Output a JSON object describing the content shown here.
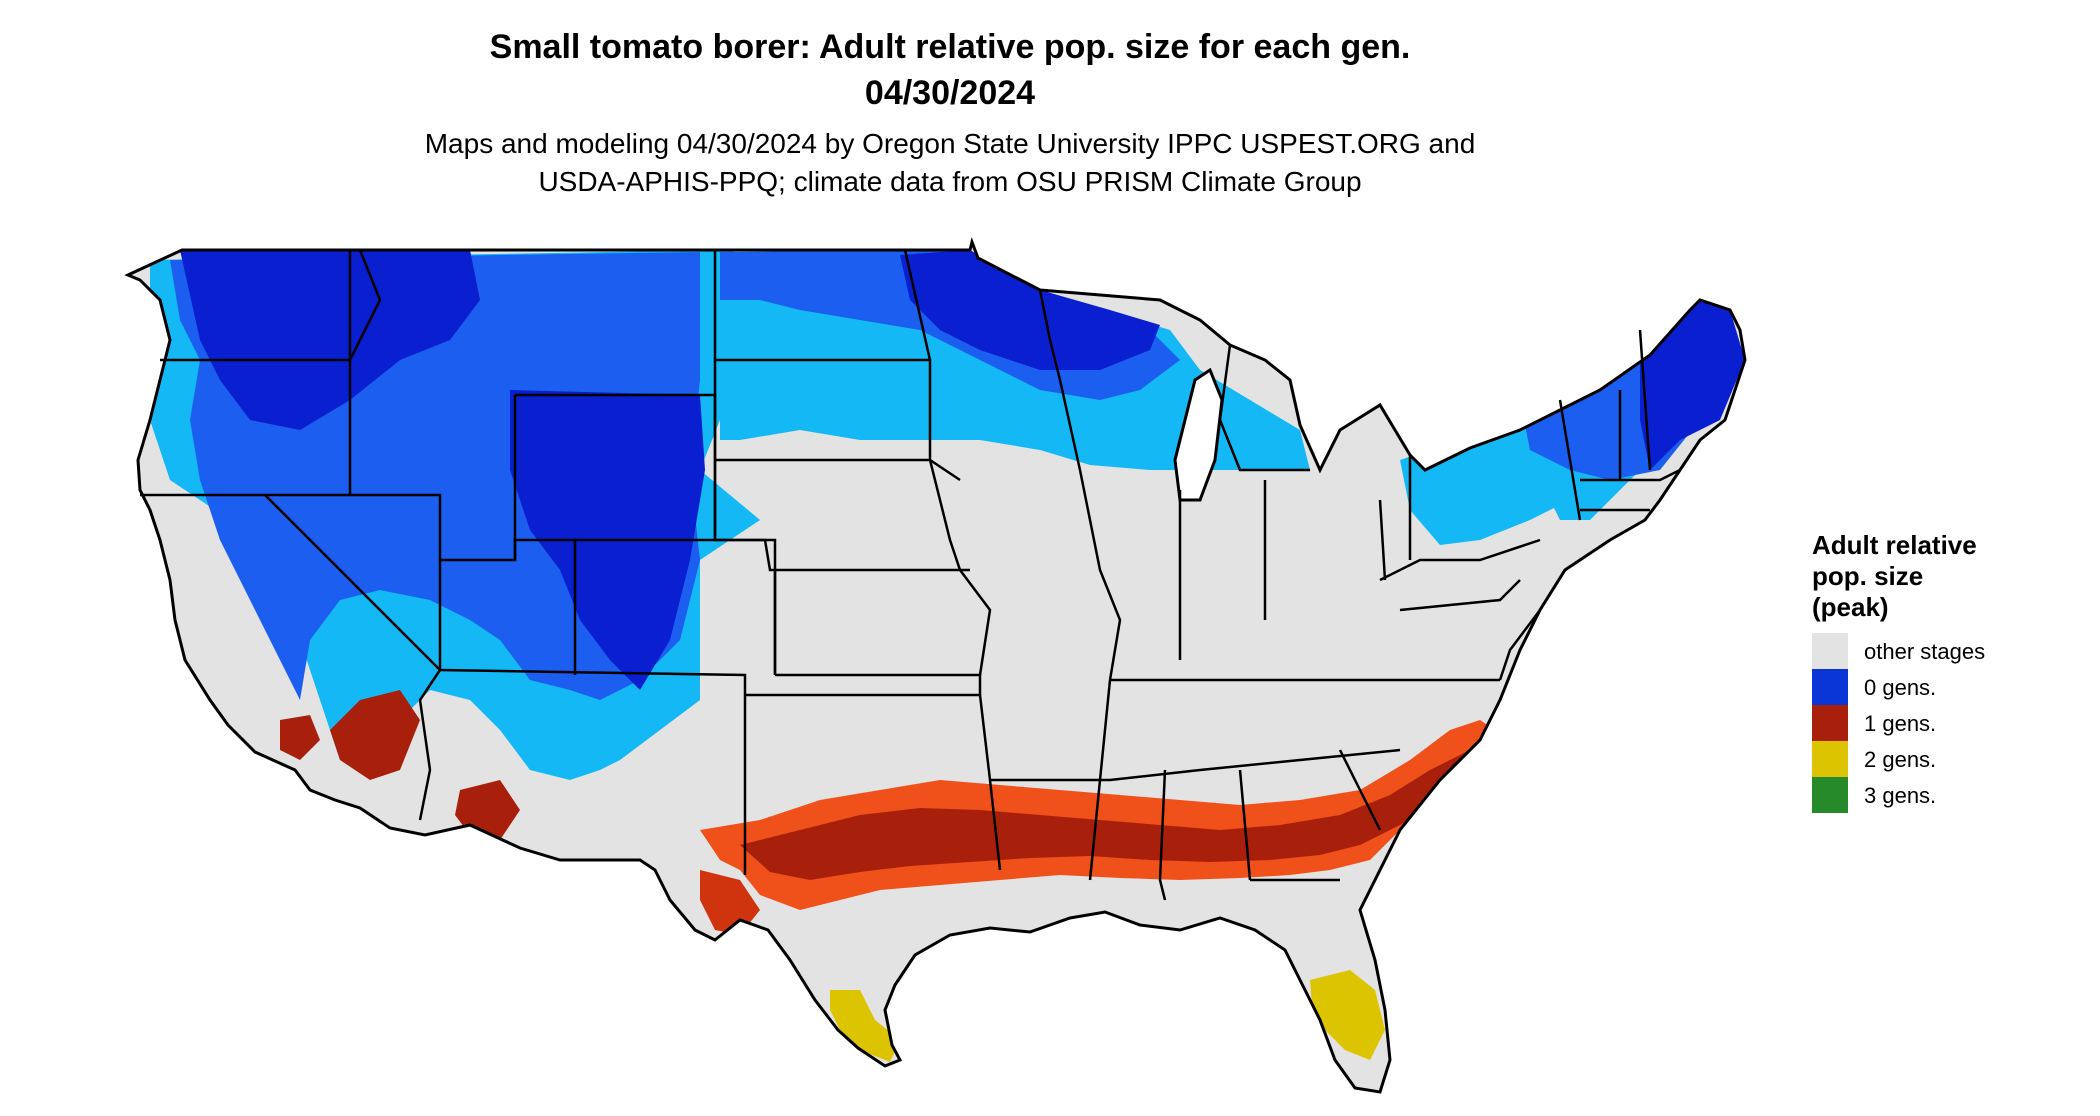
{
  "title": {
    "line1": "Small tomato borer: Adult relative pop. size for each gen.",
    "line2": "04/30/2024"
  },
  "subtitle": {
    "line1": "Maps and modeling 04/30/2024 by Oregon State University IPPC USPEST.ORG and",
    "line2": "USDA-APHIS-PPQ; climate data from OSU PRISM Climate Group"
  },
  "legend": {
    "title": "Adult relative\npop. size\n(peak)",
    "items": [
      {
        "label": "other stages",
        "color": "#e3e3e3"
      },
      {
        "label": "0 gens.",
        "color": "#0a36d8"
      },
      {
        "label": "1 gens.",
        "color": "#a8200c"
      },
      {
        "label": "2 gens.",
        "color": "#dcc400"
      },
      {
        "label": "3 gens.",
        "color": "#268a2a"
      }
    ]
  },
  "colors": {
    "land_other": "#e3e3e3",
    "cold_dark": "#0a1fd0",
    "cold_mid": "#1b5ef0",
    "cold_light": "#13b8f5",
    "warm_dark": "#a8200c",
    "warm_mid": "#d0340f",
    "warm_light": "#f0501a",
    "gen2": "#dcc400",
    "border": "#000000"
  }
}
